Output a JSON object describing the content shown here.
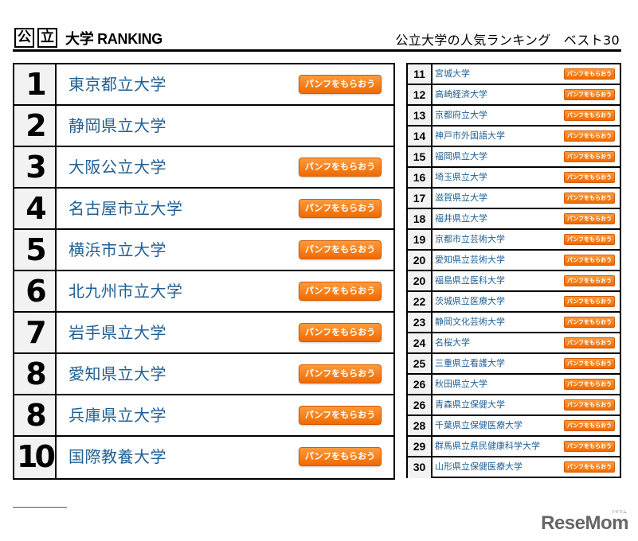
{
  "header": {
    "logo_char_1": "公",
    "logo_char_2": "立",
    "logo_text": "大学 RANKING",
    "subtitle": "公立大学の人気ランキング　ベスト30"
  },
  "colors": {
    "name_text": "#1f5f94",
    "button_orange": "#f06a00",
    "rank_bg": "#f2f2f2"
  },
  "button_label": "パンフをもらおう",
  "top_ranking": [
    {
      "rank": "1",
      "name": "東京都立大学",
      "has_button": true
    },
    {
      "rank": "2",
      "name": "静岡県立大学",
      "has_button": false
    },
    {
      "rank": "3",
      "name": "大阪公立大学",
      "has_button": true
    },
    {
      "rank": "4",
      "name": "名古屋市立大学",
      "has_button": true
    },
    {
      "rank": "5",
      "name": "横浜市立大学",
      "has_button": true
    },
    {
      "rank": "6",
      "name": "北九州市立大学",
      "has_button": true
    },
    {
      "rank": "7",
      "name": "岩手県立大学",
      "has_button": true
    },
    {
      "rank": "8",
      "name": "愛知県立大学",
      "has_button": true
    },
    {
      "rank": "8",
      "name": "兵庫県立大学",
      "has_button": true
    },
    {
      "rank": "10",
      "name": "国際教養大学",
      "has_button": true
    }
  ],
  "rest_ranking": [
    {
      "rank": "11",
      "name": "宮城大学",
      "has_button": true
    },
    {
      "rank": "12",
      "name": "高崎経済大学",
      "has_button": true
    },
    {
      "rank": "13",
      "name": "京都府立大学",
      "has_button": true
    },
    {
      "rank": "14",
      "name": "神戸市外国語大学",
      "has_button": true
    },
    {
      "rank": "15",
      "name": "福岡県立大学",
      "has_button": true
    },
    {
      "rank": "16",
      "name": "埼玉県立大学",
      "has_button": true
    },
    {
      "rank": "17",
      "name": "滋賀県立大学",
      "has_button": true
    },
    {
      "rank": "18",
      "name": "福井県立大学",
      "has_button": true
    },
    {
      "rank": "19",
      "name": "京都市立芸術大学",
      "has_button": true
    },
    {
      "rank": "20",
      "name": "愛知県立芸術大学",
      "has_button": true
    },
    {
      "rank": "20",
      "name": "福島県立医科大学",
      "has_button": true
    },
    {
      "rank": "22",
      "name": "茨城県立医療大学",
      "has_button": true
    },
    {
      "rank": "23",
      "name": "静岡文化芸術大学",
      "has_button": true
    },
    {
      "rank": "24",
      "name": "名桜大学",
      "has_button": true
    },
    {
      "rank": "25",
      "name": "三重県立看護大学",
      "has_button": true
    },
    {
      "rank": "26",
      "name": "秋田県立大学",
      "has_button": true
    },
    {
      "rank": "26",
      "name": "青森県立保健大学",
      "has_button": true
    },
    {
      "rank": "28",
      "name": "千葉県立保健医療大学",
      "has_button": true
    },
    {
      "rank": "29",
      "name": "群馬県立県民健康科学大学",
      "has_button": true
    },
    {
      "rank": "30",
      "name": "山形県立保健医療大学",
      "has_button": true
    }
  ],
  "footer": {
    "brand": "ReseMom",
    "brand_sub": "リセマム"
  }
}
